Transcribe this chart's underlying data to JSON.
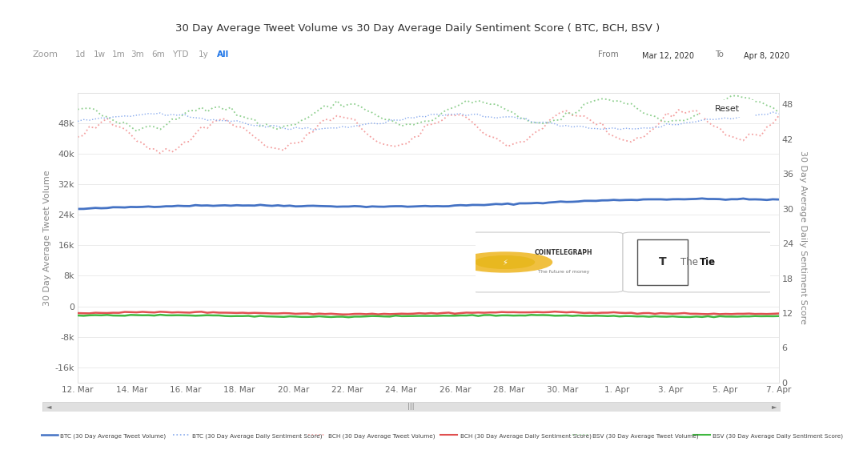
{
  "title": "30 Day Average Tweet Volume vs 30 Day Average Daily Sentiment Score ( BTC, BCH, BSV )",
  "date_from": "Mar 12, 2020",
  "date_to": "Apr 8, 2020",
  "ylabel_left": "30 Day Average Tweet Volume",
  "ylabel_right": "30 Day Average Daily Sentiment Score",
  "ylim_left": [
    -20000,
    56000
  ],
  "ylim_right": [
    0,
    50
  ],
  "yticks_left": [
    -16000,
    -8000,
    0,
    8000,
    16000,
    24000,
    32000,
    40000,
    48000
  ],
  "yticks_right": [
    0,
    6,
    12,
    18,
    24,
    30,
    36,
    42,
    48
  ],
  "xtick_labels": [
    "12. Mar",
    "14. Mar",
    "16. Mar",
    "18. Mar",
    "20. Mar",
    "22. Mar",
    "24. Mar",
    "26. Mar",
    "28. Mar",
    "30. Mar",
    "1. Apr",
    "3. Apr",
    "5. Apr",
    "7. Apr"
  ],
  "n_points": 120,
  "background_color": "#ffffff",
  "grid_color": "#e8e8e8",
  "btc_tweet_color": "#4472c4",
  "bch_tweet_color": "#f4a0a0",
  "bsv_tweet_color": "#90d090",
  "btc_sentiment_color": "#88aaee",
  "bch_sentiment_color": "#e05050",
  "bsv_sentiment_color": "#40b840",
  "legend_entries": [
    {
      "label": "BTC (30 Day Average Tweet Volume)",
      "color": "#4472c4",
      "ls": "-",
      "lw": 1.8
    },
    {
      "label": "BTC (30 Day Average Daily Sentiment Score)",
      "color": "#88aaee",
      "ls": ":",
      "lw": 1.2
    },
    {
      "label": "BCH (30 Day Average Tweet Volume)",
      "color": "#f4a0a0",
      "ls": ":",
      "lw": 1.2
    },
    {
      "label": "BCH (30 Day Average Daily Sentiment Score)",
      "color": "#e05050",
      "ls": "-",
      "lw": 1.5
    },
    {
      "label": "BSV (30 Day Average Tweet Volume)",
      "color": "#90d090",
      "ls": ":",
      "lw": 1.2
    },
    {
      "label": "BSV (30 Day Average Daily Sentiment Score)",
      "color": "#40b840",
      "ls": "-",
      "lw": 1.5
    }
  ],
  "zoom_labels": [
    "Zoom",
    "1d",
    "1w",
    "1m",
    "3m",
    "6m",
    "YTD",
    "1y",
    "All"
  ],
  "zoom_active": "All"
}
